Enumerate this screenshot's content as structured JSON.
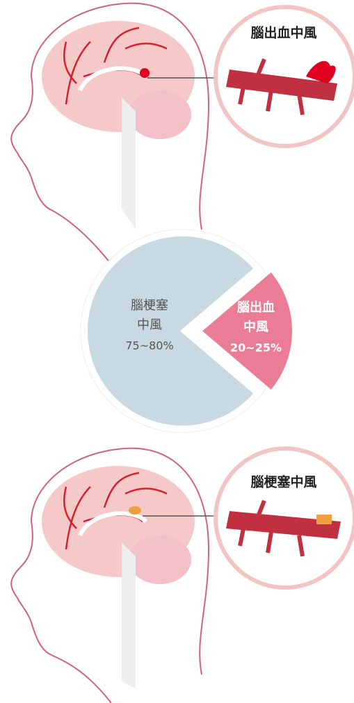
{
  "top_callout": {
    "title": "腦出血中風"
  },
  "bottom_callout": {
    "title": "腦梗塞中風"
  },
  "chart_data": {
    "type": "pie",
    "categories": [
      [
        "腦梗塞",
        "中風"
      ],
      [
        "腦出血",
        "中風"
      ]
    ],
    "values": [
      77.5,
      22.5
    ],
    "value_labels": [
      "75~80%",
      "20~25%"
    ],
    "colors": [
      "#c9d9e1",
      "#ea7d95"
    ],
    "label_colors": [
      "#555555",
      "#ffffff"
    ]
  }
}
